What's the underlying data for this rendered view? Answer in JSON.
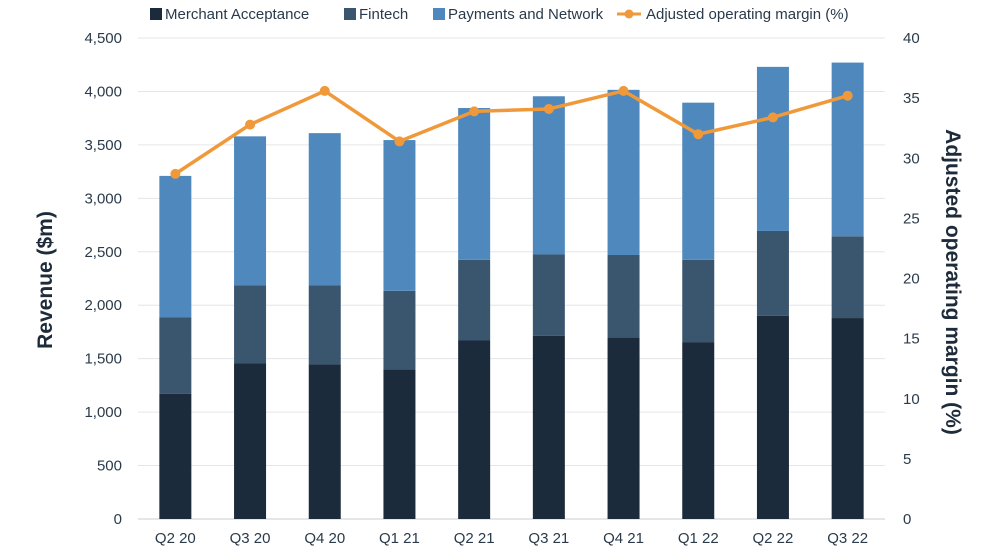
{
  "chart_data": {
    "type": "bar",
    "stacked": true,
    "categories": [
      "Q2 20",
      "Q3 20",
      "Q4 20",
      "Q1 21",
      "Q2 21",
      "Q3 21",
      "Q4 21",
      "Q1 22",
      "Q2 22",
      "Q3 22"
    ],
    "series": [
      {
        "name": "Merchant Acceptance",
        "color": "#1b2b3c",
        "values": [
          1170,
          1455,
          1445,
          1400,
          1670,
          1715,
          1700,
          1655,
          1900,
          1880
        ]
      },
      {
        "name": "Fintech",
        "color": "#3a566f",
        "values": [
          715,
          730,
          740,
          735,
          755,
          760,
          770,
          770,
          795,
          765
        ]
      },
      {
        "name": "Payments and Network",
        "color": "#4f88bd",
        "values": [
          1325,
          1395,
          1425,
          1410,
          1420,
          1480,
          1545,
          1470,
          1535,
          1625
        ]
      }
    ],
    "line_series": {
      "name": "Adjusted operating margin (%)",
      "color": "#f0993a",
      "axis": "right",
      "values": [
        28.7,
        32.8,
        35.6,
        31.4,
        33.9,
        34.1,
        35.6,
        32.0,
        33.4,
        35.2
      ]
    },
    "ylabel": "Revenue ($m)",
    "y2label": "Adjusted operating margin (%)",
    "ylim": [
      0,
      4500
    ],
    "y2lim": [
      0,
      40
    ],
    "yticks": [
      "0",
      "500",
      "1,000",
      "1,500",
      "2,000",
      "2,500",
      "3,000",
      "3,500",
      "4,000",
      "4,500"
    ],
    "y2ticks": [
      "0",
      "5",
      "10",
      "15",
      "20",
      "25",
      "30",
      "35",
      "40"
    ],
    "grid": true,
    "legend_position": "top"
  }
}
